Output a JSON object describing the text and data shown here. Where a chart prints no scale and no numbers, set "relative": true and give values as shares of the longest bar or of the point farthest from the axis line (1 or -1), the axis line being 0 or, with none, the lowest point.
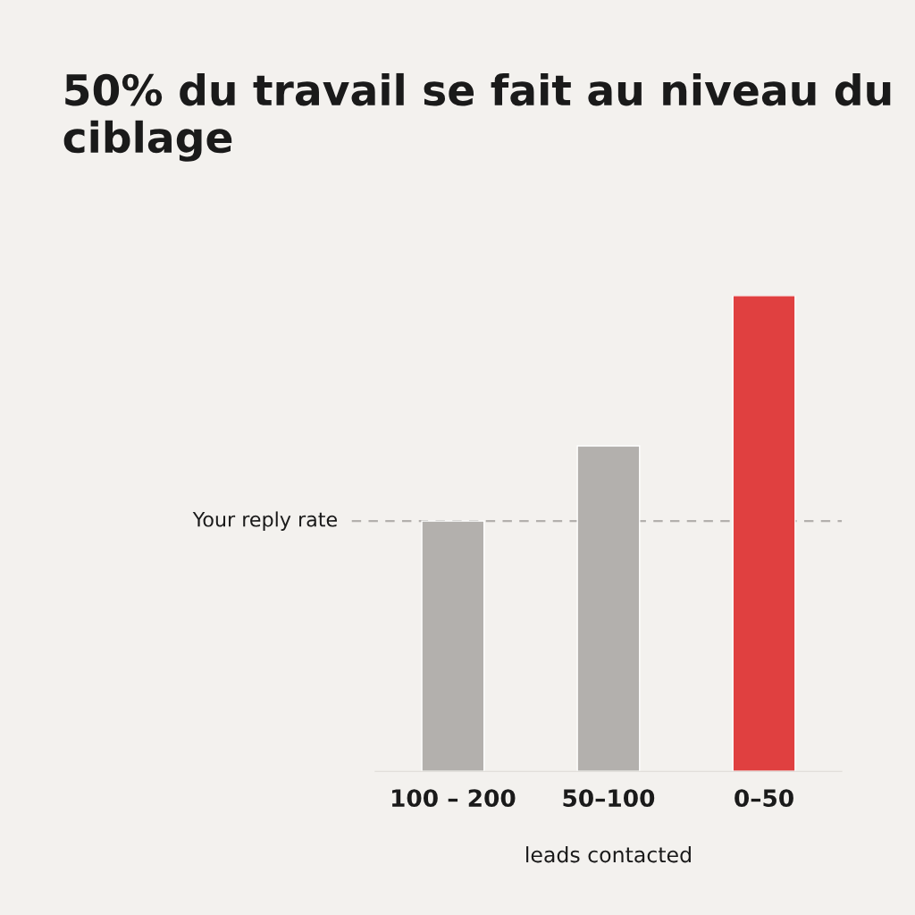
{
  "chart_data": {
    "type": "bar",
    "title": "50% du travail se fait au niveau du ciblage",
    "xlabel": "leads contacted",
    "categories": [
      "100 – 200",
      "50–100",
      "0–50"
    ],
    "values": [
      0.526,
      0.684,
      1
    ],
    "colors": [
      "#b3b0ad",
      "#b3b0ad",
      "#e04040"
    ],
    "relative": true,
    "ref_lines": [
      {
        "axis": "y",
        "value": 0.526,
        "label": "Your reply rate",
        "color": "#b3b0ad",
        "line_style": "dashed"
      }
    ],
    "grid": false,
    "legend": false
  }
}
